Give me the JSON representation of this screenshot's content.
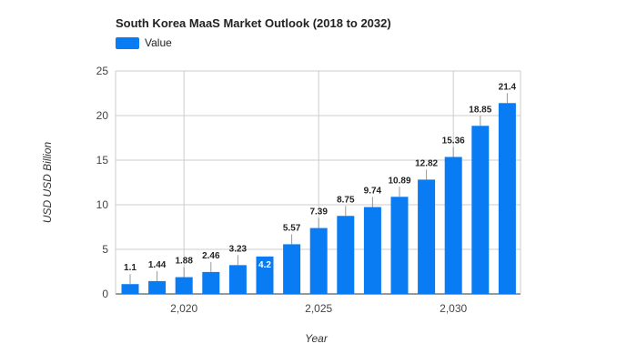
{
  "colors": {
    "bar": "#0a7cf3",
    "grid": "#cccccc",
    "axis": "#333333",
    "leader": "#999999"
  },
  "chart_data": {
    "type": "bar",
    "title": "South Korea MaaS Market Outlook (2018 to 2032)",
    "xlabel": "Year",
    "ylabel": "USD USD Billion",
    "ylim": [
      0,
      25
    ],
    "y_ticks": [
      "0",
      "5",
      "10",
      "15",
      "20",
      "25"
    ],
    "x_ticks": [
      {
        "value": 2020,
        "label": "2,020"
      },
      {
        "value": 2025,
        "label": "2,025"
      },
      {
        "value": 2030,
        "label": "2,030"
      }
    ],
    "grid": true,
    "legend_position": "top-left",
    "series": [
      {
        "name": "Value",
        "x": [
          2018,
          2019,
          2020,
          2021,
          2022,
          2023,
          2024,
          2025,
          2026,
          2027,
          2028,
          2029,
          2030,
          2031,
          2032
        ],
        "values": [
          1.1,
          1.44,
          1.88,
          2.46,
          3.23,
          4.2,
          5.57,
          7.39,
          8.75,
          9.74,
          10.89,
          12.82,
          15.36,
          18.85,
          21.4
        ],
        "labels": [
          "1.1",
          "1.44",
          "1.88",
          "2.46",
          "3.23",
          "4.2",
          "5.57",
          "7.39",
          "8.75",
          "9.74",
          "10.89",
          "12.82",
          "15.36",
          "18.85",
          "21.4"
        ]
      }
    ]
  }
}
